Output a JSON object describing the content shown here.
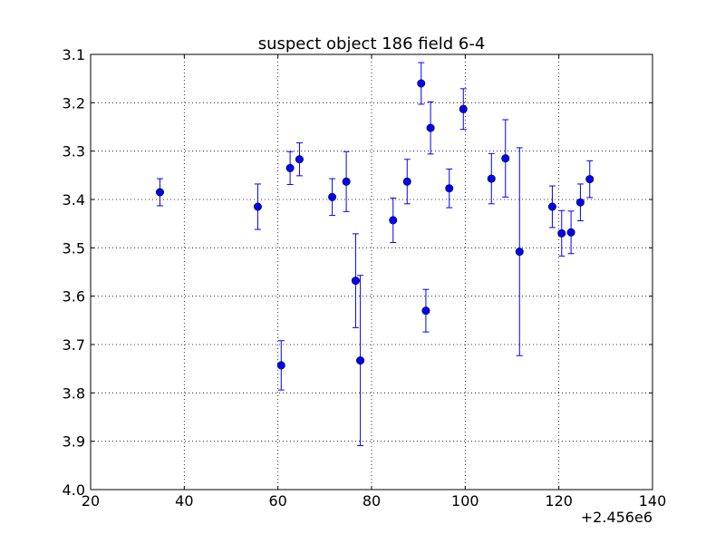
{
  "chart_data": {
    "type": "scatter",
    "title": "suspect object 186 field 6-4",
    "xlabel": "",
    "ylabel": "",
    "x_offset_label": "+2.456e6",
    "xlim": [
      20,
      140
    ],
    "ylim": [
      3.1,
      4.0
    ],
    "y_inverted": true,
    "grid": true,
    "x_ticks": [
      "20",
      "40",
      "60",
      "80",
      "100",
      "120",
      "140"
    ],
    "y_ticks": [
      "3.1",
      "3.2",
      "3.3",
      "3.4",
      "3.5",
      "3.6",
      "3.7",
      "3.8",
      "3.9",
      "4.0"
    ],
    "marker_color": "#0000ff",
    "errorbar_color": "#0000ff",
    "series": [
      {
        "points": [
          {
            "x": 34.8,
            "y": 3.385,
            "err": 0.028
          },
          {
            "x": 55.7,
            "y": 3.415,
            "err": 0.047
          },
          {
            "x": 60.7,
            "y": 3.743,
            "err": 0.051
          },
          {
            "x": 62.6,
            "y": 3.335,
            "err": 0.034
          },
          {
            "x": 64.6,
            "y": 3.317,
            "err": 0.034
          },
          {
            "x": 71.6,
            "y": 3.395,
            "err": 0.038
          },
          {
            "x": 74.6,
            "y": 3.363,
            "err": 0.062
          },
          {
            "x": 76.6,
            "y": 3.568,
            "err": 0.097
          },
          {
            "x": 77.6,
            "y": 3.733,
            "err": 0.176
          },
          {
            "x": 84.6,
            "y": 3.443,
            "err": 0.046
          },
          {
            "x": 87.6,
            "y": 3.363,
            "err": 0.046
          },
          {
            "x": 90.6,
            "y": 3.16,
            "err": 0.043
          },
          {
            "x": 91.6,
            "y": 3.63,
            "err": 0.044
          },
          {
            "x": 92.6,
            "y": 3.252,
            "err": 0.054
          },
          {
            "x": 96.6,
            "y": 3.377,
            "err": 0.04
          },
          {
            "x": 99.6,
            "y": 3.213,
            "err": 0.042
          },
          {
            "x": 105.6,
            "y": 3.357,
            "err": 0.052
          },
          {
            "x": 108.6,
            "y": 3.315,
            "err": 0.08
          },
          {
            "x": 111.6,
            "y": 3.508,
            "err": 0.215
          },
          {
            "x": 118.6,
            "y": 3.415,
            "err": 0.043
          },
          {
            "x": 120.6,
            "y": 3.47,
            "err": 0.047
          },
          {
            "x": 122.6,
            "y": 3.468,
            "err": 0.044
          },
          {
            "x": 124.6,
            "y": 3.406,
            "err": 0.038
          },
          {
            "x": 126.6,
            "y": 3.358,
            "err": 0.038
          }
        ]
      }
    ]
  }
}
